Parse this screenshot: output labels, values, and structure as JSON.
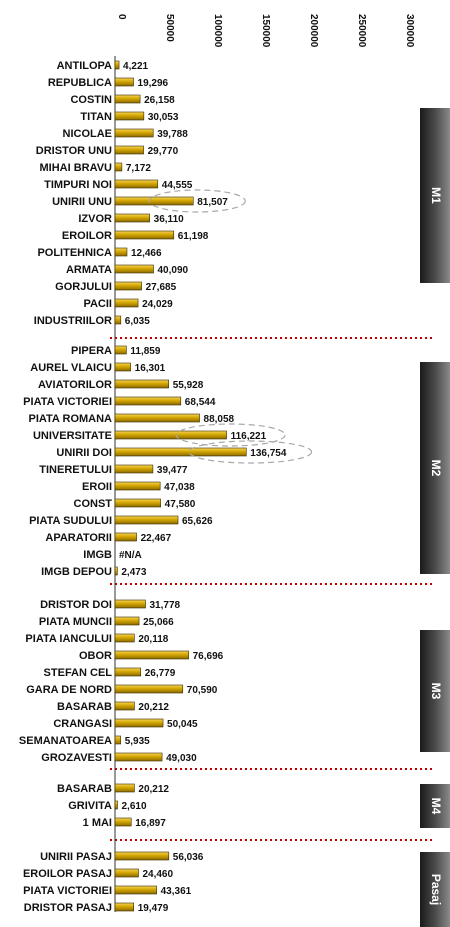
{
  "chart_data": {
    "type": "bar",
    "orientation": "horizontal",
    "xlim": [
      0,
      300000
    ],
    "x_ticks": [
      "0",
      "50000",
      "100000",
      "150000",
      "200000",
      "250000",
      "300000"
    ],
    "bar_color": "#d4a600",
    "highlighted": [
      "UNIRII UNU",
      "UNIVERSITATE",
      "UNIRII DOI"
    ],
    "groups": [
      {
        "label": "M1",
        "categories": [
          "ANTILOPA",
          "REPUBLICA",
          "COSTIN",
          "TITAN",
          "NICOLAE",
          "DRISTOR UNU",
          "MIHAI BRAVU",
          "TIMPURI NOI",
          "UNIRII UNU",
          "IZVOR",
          "EROILOR",
          "POLITEHNICA",
          "ARMATA",
          "GORJULUI",
          "PACII",
          "INDUSTRIILOR"
        ],
        "values": [
          4221,
          19296,
          26158,
          30053,
          39788,
          29770,
          7172,
          44555,
          81507,
          36110,
          61198,
          12466,
          40090,
          27685,
          24029,
          6035
        ],
        "value_labels": [
          "4,221",
          "19,296",
          "26,158",
          "30,053",
          "39,788",
          "29,770",
          "7,172",
          "44,555",
          "81,507",
          "36,110",
          "61,198",
          "12,466",
          "40,090",
          "27,685",
          "24,029",
          "6,035"
        ]
      },
      {
        "label": "M2",
        "categories": [
          "PIPERA",
          "AUREL VLAICU",
          "AVIATORILOR",
          "PIATA VICTORIEI",
          "PIATA ROMANA",
          "UNIVERSITATE",
          "UNIRII DOI",
          "TINERETULUI",
          "EROII",
          "CONST",
          "PIATA SUDULUI",
          "APARATORII",
          "IMGB",
          "IMGB DEPOU"
        ],
        "values": [
          11859,
          16301,
          55928,
          68544,
          88058,
          116221,
          136754,
          39477,
          47038,
          47580,
          65626,
          22467,
          null,
          2473
        ],
        "value_labels": [
          "11,859",
          "16,301",
          "55,928",
          "68,544",
          "88,058",
          "116,221",
          "136,754",
          "39,477",
          "47,038",
          "47,580",
          "65,626",
          "22,467",
          "#N/A",
          "2,473"
        ]
      },
      {
        "label": "M3",
        "categories": [
          "DRISTOR DOI",
          "PIATA MUNCII",
          "PIATA IANCULUI",
          "OBOR",
          "STEFAN CEL",
          "GARA DE NORD",
          "BASARAB",
          "CRANGASI",
          "SEMANATOAREA",
          "GROZAVESTI"
        ],
        "values": [
          31778,
          25066,
          20118,
          76696,
          26779,
          70590,
          20212,
          50045,
          5935,
          49030
        ],
        "value_labels": [
          "31,778",
          "25,066",
          "20,118",
          "76,696",
          "26,779",
          "70,590",
          "20,212",
          "50,045",
          "5,935",
          "49,030"
        ]
      },
      {
        "label": "M4",
        "categories": [
          "BASARAB",
          "GRIVITA",
          "1 MAI"
        ],
        "values": [
          20212,
          2610,
          16897
        ],
        "value_labels": [
          "20,212",
          "2,610",
          "16,897"
        ]
      },
      {
        "label": "Pasaj",
        "categories": [
          "UNIRII PASAJ",
          "EROILOR PASAJ",
          "PIATA VICTORIEI",
          "DRISTOR PASAJ"
        ],
        "values": [
          56036,
          24460,
          43361,
          19479
        ],
        "value_labels": [
          "56,036",
          "24,460",
          "43,361",
          "19,479"
        ]
      }
    ]
  }
}
